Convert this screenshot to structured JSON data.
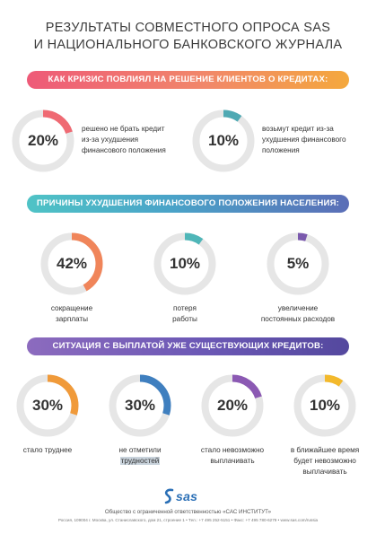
{
  "title": {
    "line1": "РЕЗУЛЬТАТЫ СОВМЕСТНОГО ОПРОСА SAS",
    "line2": "И НАЦИОНАЛЬНОГО БАНКОВСКОГО ЖУРНАЛА"
  },
  "section1": {
    "heading": "КАК КРИЗИС ПОВЛИЯЛ НА РЕШЕНИЕ КЛИЕНТОВ О КРЕДИТАХ:",
    "items": [
      {
        "value": "20%",
        "fraction": 0.2,
        "color": "#ef6a73",
        "lines": [
          "решено не брать кредит",
          "из-за ухудшения",
          "финансового положения"
        ]
      },
      {
        "value": "10%",
        "fraction": 0.1,
        "color": "#4fa9b3",
        "lines": [
          "возьмут кредит из-за",
          "ухудшения финансового",
          "положения"
        ]
      }
    ]
  },
  "section2": {
    "heading": "ПРИЧИНЫ УХУДШЕНИЯ ФИНАНСОВОГО ПОЛОЖЕНИЯ НАСЕЛЕНИЯ:",
    "items": [
      {
        "value": "42%",
        "fraction": 0.42,
        "color": "#f0855a",
        "lines": [
          "сокращение",
          "зарплаты"
        ]
      },
      {
        "value": "10%",
        "fraction": 0.1,
        "color": "#4fb6b8",
        "lines": [
          "потеря",
          "работы"
        ]
      },
      {
        "value": "5%",
        "fraction": 0.05,
        "color": "#7a59ad",
        "lines": [
          "увеличение",
          "постоянных расходов"
        ]
      }
    ]
  },
  "section3": {
    "heading": "СИТУАЦИЯ С ВЫПЛАТОЙ УЖЕ СУЩЕСТВУЮЩИХ КРЕДИТОВ:",
    "items": [
      {
        "value": "30%",
        "fraction": 0.3,
        "color": "#f09a3a",
        "lines": [
          "стало труднее"
        ]
      },
      {
        "value": "30%",
        "fraction": 0.3,
        "color": "#3f7fbf",
        "lines": [
          "не отметили",
          "трудностей"
        ]
      },
      {
        "value": "20%",
        "fraction": 0.2,
        "color": "#8b59b3",
        "lines": [
          "стало невозможно",
          "выплачивать"
        ]
      },
      {
        "value": "10%",
        "fraction": 0.1,
        "color": "#f3b92c",
        "lines": [
          "в ближайшее время",
          "будет невозможно",
          "выплачивать"
        ]
      }
    ]
  },
  "footer": {
    "logo": "sas",
    "company": "Общество с ограниченной ответственностью «САС ИНСТИТУТ»",
    "address": "Россия, 109004 г. Москва, ул. Станиславского, дом 21, строение 1 • Тел.: +7 495 252-5151 • Факс: +7 495 780-6279 • www.sas.com/russia"
  }
}
